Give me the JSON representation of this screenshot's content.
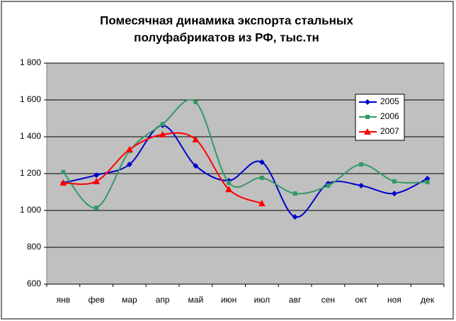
{
  "chart_data": {
    "type": "line",
    "title": [
      "Помесячная динамика экспорта стальных",
      "полуфабрикатов из РФ, тыс.тн"
    ],
    "categories": [
      "янв",
      "фев",
      "мар",
      "апр",
      "май",
      "июн",
      "июл",
      "авг",
      "сен",
      "окт",
      "ноя",
      "дек"
    ],
    "series": [
      {
        "name": "2005",
        "color": "#0000cc",
        "marker": "diamond",
        "values": [
          1150,
          1192,
          1250,
          1462,
          1242,
          1162,
          1262,
          965,
          1146,
          1135,
          1092,
          1173
        ]
      },
      {
        "name": "2006",
        "color": "#339966",
        "marker": "square",
        "values": [
          1208,
          1015,
          1323,
          1469,
          1588,
          1150,
          1177,
          1092,
          1135,
          1250,
          1158,
          1154
        ]
      },
      {
        "name": "2007",
        "color": "#ff0000",
        "marker": "triangle",
        "values": [
          1150,
          1158,
          1331,
          1412,
          1385,
          1115,
          1038,
          null,
          null,
          null,
          null,
          null
        ]
      }
    ],
    "ylim": [
      600,
      1800
    ],
    "yticks": [
      600,
      800,
      {
        "value": 1000,
        "label": "1 000"
      },
      {
        "value": 1200,
        "label": "1 200"
      },
      {
        "value": 1400,
        "label": "1 400"
      },
      {
        "value": 1600,
        "label": "1 600"
      },
      {
        "value": 1800,
        "label": "1 800"
      }
    ],
    "grid": true,
    "smooth": true,
    "legend": "upper right"
  }
}
